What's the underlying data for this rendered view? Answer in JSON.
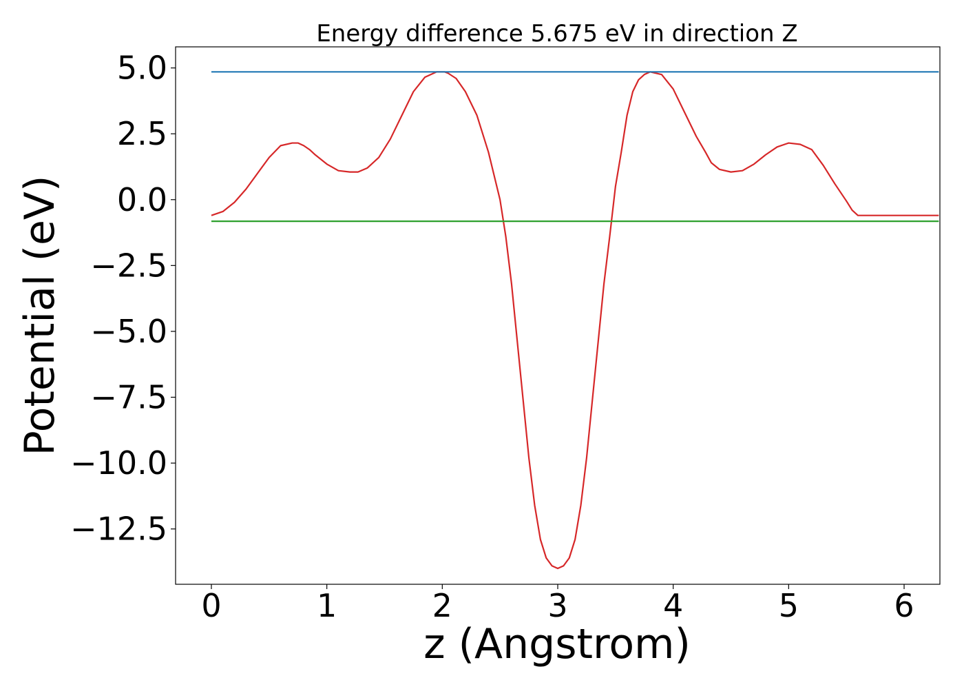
{
  "chart_data": {
    "type": "line",
    "title": "Energy difference 5.675 eV in direction Z",
    "xlabel": "z (Angstrom)",
    "ylabel": "Potential (eV)",
    "xlim": [
      -0.31,
      6.31
    ],
    "ylim": [
      -14.6,
      5.8
    ],
    "xticks": [
      0,
      1,
      2,
      3,
      4,
      5,
      6
    ],
    "xtick_labels": [
      "0",
      "1",
      "2",
      "3",
      "4",
      "5",
      "6"
    ],
    "yticks": [
      5.0,
      2.5,
      0.0,
      -2.5,
      -5.0,
      -7.5,
      -10.0,
      -12.5
    ],
    "ytick_labels": [
      "5.0",
      "2.5",
      "0.0",
      "−2.5",
      "−5.0",
      "−7.5",
      "−10.0",
      "−12.5"
    ],
    "grid": false,
    "legend": "none",
    "series": [
      {
        "color": "#d62728",
        "x": [
          0.0,
          0.1,
          0.2,
          0.3,
          0.4,
          0.5,
          0.6,
          0.7,
          0.75,
          0.8,
          0.85,
          0.9,
          1.0,
          1.1,
          1.2,
          1.27,
          1.35,
          1.45,
          1.55,
          1.65,
          1.75,
          1.85,
          1.95,
          2.02,
          2.05,
          2.12,
          2.2,
          2.3,
          2.4,
          2.5,
          2.55,
          2.6,
          2.65,
          2.7,
          2.75,
          2.8,
          2.85,
          2.9,
          2.95,
          3.0,
          3.05,
          3.1,
          3.15,
          3.2,
          3.25,
          3.3,
          3.35,
          3.4,
          3.45,
          3.5,
          3.55,
          3.6,
          3.65,
          3.7,
          3.75,
          3.8,
          3.9,
          4.0,
          4.1,
          4.2,
          4.28,
          4.33,
          4.4,
          4.5,
          4.6,
          4.7,
          4.8,
          4.9,
          5.0,
          5.1,
          5.2,
          5.3,
          5.4,
          5.5,
          5.55,
          5.6,
          5.7,
          5.8,
          5.9,
          6.0,
          6.1,
          6.2,
          6.3
        ],
        "y": [
          -0.6,
          -0.45,
          -0.1,
          0.4,
          1.0,
          1.6,
          2.05,
          2.15,
          2.15,
          2.05,
          1.9,
          1.7,
          1.35,
          1.1,
          1.05,
          1.05,
          1.2,
          1.6,
          2.3,
          3.2,
          4.1,
          4.65,
          4.85,
          4.85,
          4.8,
          4.6,
          4.1,
          3.2,
          1.8,
          0.0,
          -1.4,
          -3.2,
          -5.4,
          -7.6,
          -9.8,
          -11.6,
          -12.9,
          -13.6,
          -13.9,
          -14.0,
          -13.9,
          -13.6,
          -12.9,
          -11.6,
          -9.8,
          -7.6,
          -5.4,
          -3.2,
          -1.4,
          0.5,
          1.8,
          3.2,
          4.1,
          4.55,
          4.75,
          4.85,
          4.75,
          4.2,
          3.3,
          2.4,
          1.8,
          1.4,
          1.15,
          1.05,
          1.1,
          1.35,
          1.7,
          2.0,
          2.15,
          2.1,
          1.9,
          1.3,
          0.6,
          -0.05,
          -0.4,
          -0.6,
          -0.6,
          -0.6,
          -0.6,
          -0.6,
          -0.6,
          -0.6,
          -0.6
        ]
      },
      {
        "color": "#1f77b4",
        "x": [
          0.0,
          6.3
        ],
        "y": [
          4.85,
          4.85
        ]
      },
      {
        "color": "#2ca02c",
        "x": [
          0.0,
          6.3
        ],
        "y": [
          -0.82,
          -0.82
        ]
      }
    ]
  }
}
